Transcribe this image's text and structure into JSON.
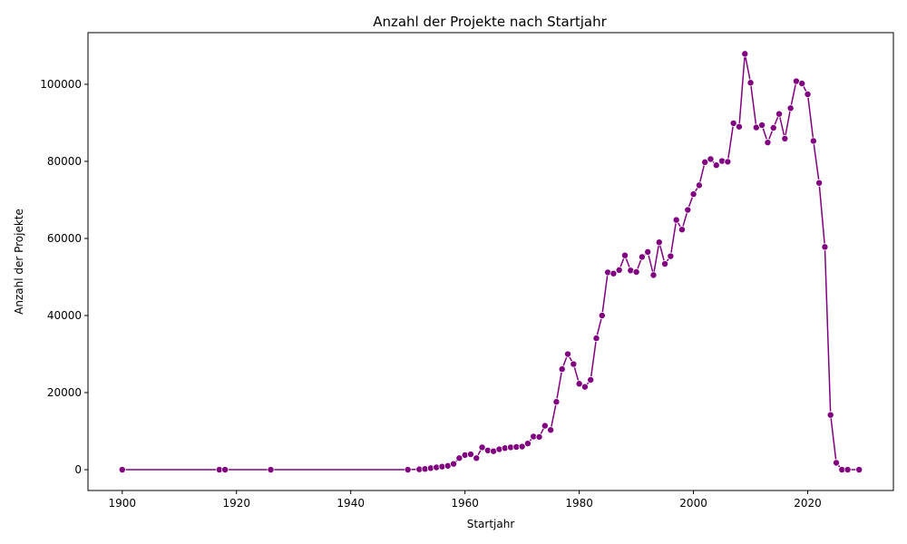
{
  "chart_data": {
    "type": "line",
    "title": "Anzahl der Projekte nach Startjahr",
    "xlabel": "Startjahr",
    "ylabel": "Anzahl der Projekte",
    "xlim": [
      1894,
      2035
    ],
    "ylim": [
      -5400,
      113400
    ],
    "xticks": [
      1900,
      1920,
      1940,
      1960,
      1980,
      2000,
      2020
    ],
    "yticks": [
      0,
      20000,
      40000,
      60000,
      80000,
      100000
    ],
    "grid": false,
    "color": "#800080",
    "series": [
      {
        "x": [
          1900,
          1917,
          1918,
          1926,
          1950,
          1952,
          1953,
          1954,
          1955,
          1956,
          1957,
          1958,
          1959,
          1960,
          1961,
          1962,
          1963,
          1964,
          1965,
          1966,
          1967,
          1968,
          1969,
          1970,
          1971,
          1972,
          1973,
          1974,
          1975,
          1976,
          1977,
          1978,
          1979,
          1980,
          1981,
          1982,
          1983,
          1984,
          1985,
          1986,
          1987,
          1988,
          1989,
          1990,
          1991,
          1992,
          1993,
          1994,
          1995,
          1996,
          1997,
          1998,
          1999,
          2000,
          2001,
          2002,
          2003,
          2004,
          2005,
          2006,
          2007,
          2008,
          2009,
          2010,
          2011,
          2012,
          2013,
          2014,
          2015,
          2016,
          2017,
          2018,
          2019,
          2020,
          2021,
          2022,
          2023,
          2024,
          2025,
          2026,
          2027,
          2029
        ],
        "y": [
          0,
          0,
          0,
          0,
          0,
          100,
          200,
          400,
          600,
          800,
          1000,
          1500,
          3000,
          3800,
          4000,
          3000,
          5800,
          5000,
          4800,
          5300,
          5600,
          5800,
          5900,
          6000,
          6800,
          8600,
          8500,
          11400,
          10300,
          17600,
          26100,
          30000,
          27400,
          22300,
          21500,
          23300,
          34100,
          40000,
          51200,
          50900,
          51800,
          55600,
          51700,
          51300,
          55200,
          56500,
          50500,
          59000,
          53400,
          55400,
          64800,
          62300,
          67400,
          71500,
          73800,
          79800,
          80600,
          79000,
          80100,
          79900,
          89900,
          89000,
          107900,
          100400,
          88800,
          89400,
          84900,
          88700,
          92300,
          85900,
          93800,
          100800,
          100200,
          97400,
          85300,
          74400,
          57800,
          14200,
          1800,
          0,
          0,
          0
        ]
      }
    ]
  }
}
